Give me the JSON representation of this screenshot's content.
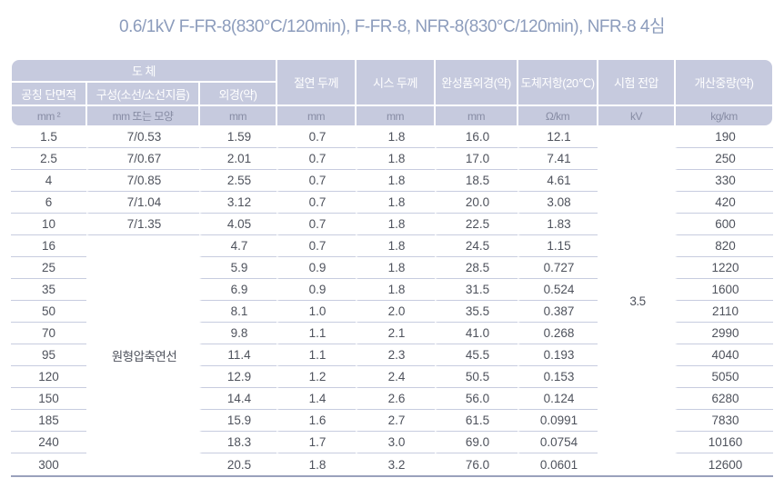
{
  "title": "0.6/1kV F-FR-8(830°C/120min), F-FR-8, NFR-8(830°C/120min), NFR-8 4심",
  "table": {
    "header": {
      "conductor_group": "도 체",
      "nominal_area": "공칭 단면적",
      "composition": "구성(소선/소선지름)",
      "outer_diameter": "외경(약)",
      "insulation_thickness": "절연 두께",
      "sheath_thickness": "시스 두께",
      "finished_od": "완성품외경(약)",
      "conductor_resistance": "도체저항(20℃)",
      "test_voltage": "시험 전압",
      "approx_weight": "개산중량(약)"
    },
    "units": [
      "mm ²",
      "mm 또는 모양",
      "mm",
      "mm",
      "mm",
      "mm",
      "Ω/km",
      "kV",
      "kg/km"
    ],
    "merged": {
      "composition_label": "원형압축연선",
      "test_voltage_value": "3.5"
    },
    "rows": [
      {
        "area": "1.5",
        "composition": "7/0.53",
        "od": "1.59",
        "ins": "0.7",
        "sheath": "1.8",
        "fod": "16.0",
        "res": "12.1",
        "wt": "190"
      },
      {
        "area": "2.5",
        "composition": "7/0.67",
        "od": "2.01",
        "ins": "0.7",
        "sheath": "1.8",
        "fod": "17.0",
        "res": "7.41",
        "wt": "250"
      },
      {
        "area": "4",
        "composition": "7/0.85",
        "od": "2.55",
        "ins": "0.7",
        "sheath": "1.8",
        "fod": "18.5",
        "res": "4.61",
        "wt": "330"
      },
      {
        "area": "6",
        "composition": "7/1.04",
        "od": "3.12",
        "ins": "0.7",
        "sheath": "1.8",
        "fod": "20.0",
        "res": "3.08",
        "wt": "420"
      },
      {
        "area": "10",
        "composition": "7/1.35",
        "od": "4.05",
        "ins": "0.7",
        "sheath": "1.8",
        "fod": "22.5",
        "res": "1.83",
        "wt": "600"
      },
      {
        "area": "16",
        "composition": null,
        "od": "4.7",
        "ins": "0.7",
        "sheath": "1.8",
        "fod": "24.5",
        "res": "1.15",
        "wt": "820"
      },
      {
        "area": "25",
        "composition": null,
        "od": "5.9",
        "ins": "0.9",
        "sheath": "1.8",
        "fod": "28.5",
        "res": "0.727",
        "wt": "1220"
      },
      {
        "area": "35",
        "composition": null,
        "od": "6.9",
        "ins": "0.9",
        "sheath": "1.8",
        "fod": "31.5",
        "res": "0.524",
        "wt": "1600"
      },
      {
        "area": "50",
        "composition": null,
        "od": "8.1",
        "ins": "1.0",
        "sheath": "2.0",
        "fod": "35.5",
        "res": "0.387",
        "wt": "2110"
      },
      {
        "area": "70",
        "composition": null,
        "od": "9.8",
        "ins": "1.1",
        "sheath": "2.1",
        "fod": "41.0",
        "res": "0.268",
        "wt": "2990"
      },
      {
        "area": "95",
        "composition": null,
        "od": "11.4",
        "ins": "1.1",
        "sheath": "2.3",
        "fod": "45.5",
        "res": "0.193",
        "wt": "4040"
      },
      {
        "area": "120",
        "composition": null,
        "od": "12.9",
        "ins": "1.2",
        "sheath": "2.4",
        "fod": "50.5",
        "res": "0.153",
        "wt": "5050"
      },
      {
        "area": "150",
        "composition": null,
        "od": "14.4",
        "ins": "1.4",
        "sheath": "2.6",
        "fod": "56.0",
        "res": "0.124",
        "wt": "6280"
      },
      {
        "area": "185",
        "composition": null,
        "od": "15.9",
        "ins": "1.6",
        "sheath": "2.7",
        "fod": "61.5",
        "res": "0.0991",
        "wt": "7830"
      },
      {
        "area": "240",
        "composition": null,
        "od": "18.3",
        "ins": "1.7",
        "sheath": "3.0",
        "fod": "69.0",
        "res": "0.0754",
        "wt": "10160"
      },
      {
        "area": "300",
        "composition": null,
        "od": "20.5",
        "ins": "1.8",
        "sheath": "3.2",
        "fod": "76.0",
        "res": "0.0601",
        "wt": "12600"
      }
    ]
  },
  "colors": {
    "header_bg": "#c6cade",
    "header_text": "#ffffff",
    "units_text": "#878ca4",
    "body_text": "#4e525c",
    "row_line": "#c7ccdf",
    "table_bottom_border": "#9aa1bc",
    "title_text": "#8c9cbc"
  }
}
